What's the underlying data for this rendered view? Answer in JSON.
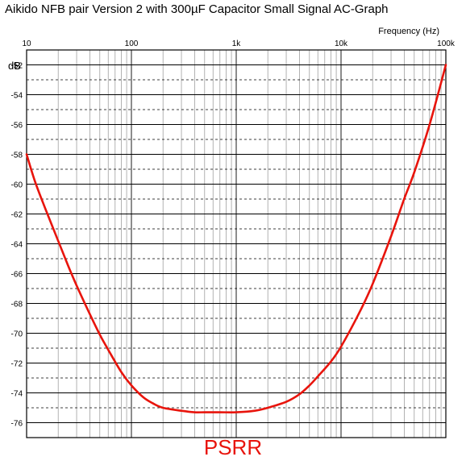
{
  "chart_data": {
    "type": "line",
    "title": "Aikido NFB pair Version 2 with 300µF Capacitor Small Signal AC-Graph",
    "xlabel": "Frequency  (Hz)",
    "ylabel": "dB",
    "xscale": "log",
    "xlim": [
      10,
      100000
    ],
    "ylim": [
      -77,
      -51
    ],
    "grid": true,
    "x_ticks": [
      {
        "value": 10,
        "label": "10"
      },
      {
        "value": 100,
        "label": "100"
      },
      {
        "value": 1000,
        "label": "1k"
      },
      {
        "value": 10000,
        "label": "10k"
      },
      {
        "value": 100000,
        "label": "100k"
      }
    ],
    "y_ticks": [
      {
        "value": -52,
        "label": "-52"
      },
      {
        "value": -54,
        "label": "-54"
      },
      {
        "value": -56,
        "label": "-56"
      },
      {
        "value": -58,
        "label": "-58"
      },
      {
        "value": -60,
        "label": "-60"
      },
      {
        "value": -62,
        "label": "-62"
      },
      {
        "value": -64,
        "label": "-64"
      },
      {
        "value": -66,
        "label": "-66"
      },
      {
        "value": -68,
        "label": "-68"
      },
      {
        "value": -70,
        "label": "-70"
      },
      {
        "value": -72,
        "label": "-72"
      },
      {
        "value": -74,
        "label": "-74"
      },
      {
        "value": -76,
        "label": "-76"
      }
    ],
    "series": [
      {
        "name": "PSRR",
        "color": "#e8140c",
        "x": [
          10,
          12,
          15,
          20,
          25,
          30,
          40,
          50,
          60,
          80,
          100,
          130,
          160,
          200,
          300,
          400,
          500,
          700,
          1000,
          1500,
          2000,
          3000,
          4000,
          5000,
          6000,
          8000,
          10000,
          15000,
          20000,
          30000,
          40000,
          50000,
          70000,
          100000
        ],
        "y": [
          -58.0,
          -59.8,
          -61.6,
          -63.8,
          -65.5,
          -66.8,
          -68.7,
          -70.1,
          -71.1,
          -72.6,
          -73.5,
          -74.3,
          -74.7,
          -75.0,
          -75.2,
          -75.3,
          -75.3,
          -75.3,
          -75.3,
          -75.2,
          -75.0,
          -74.6,
          -74.1,
          -73.5,
          -72.9,
          -71.9,
          -70.9,
          -68.6,
          -66.7,
          -63.5,
          -61.0,
          -59.2,
          -56.0,
          -52.0
        ]
      }
    ]
  },
  "psrr_label": "PSRR"
}
